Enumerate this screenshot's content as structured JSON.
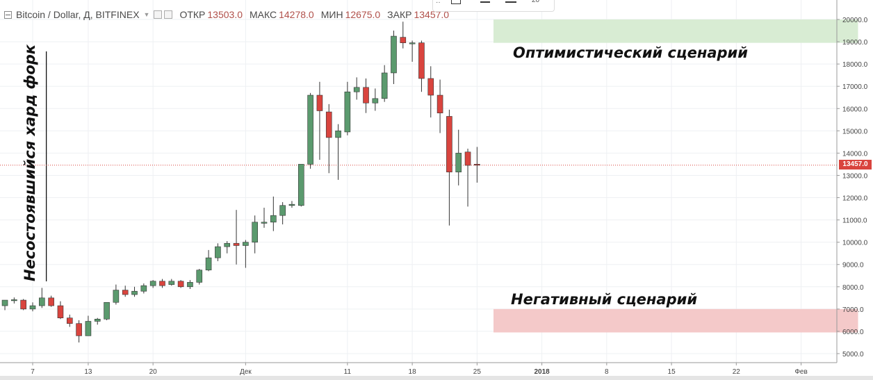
{
  "header": {
    "symbol": "Bitcoin / Dollar, Д, BITFINEX",
    "open_label": "ОТКР",
    "open_value": "13503.0",
    "high_label": "МАКС",
    "high_value": "14278.0",
    "low_label": "МИН",
    "low_value": "12675.0",
    "close_label": "ЗАКР",
    "close_value": "13457.0"
  },
  "toolbox": {
    "zoom_value": "20"
  },
  "annotations": {
    "optimistic": "Оптимистический сценарий",
    "negative": "Негативный сценарий",
    "hard_fork": "Несостоявшийся хард форк"
  },
  "price_badge": "13457.0",
  "colors": {
    "up": "#5b9a6e",
    "down": "#d9443e",
    "optimistic_zone": "#d8ecd3",
    "negative_zone": "#f4c9c9"
  },
  "chart_data": {
    "type": "candlestick",
    "ylim": [
      4700,
      20400
    ],
    "yticks": [
      "5000.0",
      "6000.0",
      "7000.0",
      "8000.0",
      "9000.0",
      "10000.0",
      "11000.0",
      "12000.0",
      "13000.0",
      "14000.0",
      "15000.0",
      "16000.0",
      "17000.0",
      "18000.0",
      "19000.0",
      "20000.0"
    ],
    "xticks": [
      {
        "day": 7,
        "label": "7"
      },
      {
        "day": 13,
        "label": "13"
      },
      {
        "day": 20,
        "label": "20"
      },
      {
        "day": 30,
        "label": "Дек"
      },
      {
        "day": 41,
        "label": "11"
      },
      {
        "day": 48,
        "label": "18"
      },
      {
        "day": 55,
        "label": "25"
      },
      {
        "day": 62,
        "label": "2018"
      },
      {
        "day": 69,
        "label": "8"
      },
      {
        "day": 76,
        "label": "15"
      },
      {
        "day": 83,
        "label": "22"
      },
      {
        "day": 90,
        "label": "Фев"
      }
    ],
    "last_price": 13457,
    "zones": [
      {
        "name": "optimistic",
        "from_day": 57,
        "to_day": 96,
        "low": 18950,
        "high": 20000
      },
      {
        "name": "negative",
        "from_day": 57,
        "to_day": 96,
        "low": 5950,
        "high": 7000
      }
    ],
    "hard_fork_day": 9,
    "candles": [
      {
        "d": 4,
        "o": 7150,
        "h": 7400,
        "l": 6950,
        "c": 7400
      },
      {
        "d": 5,
        "o": 7380,
        "h": 7520,
        "l": 7250,
        "c": 7420
      },
      {
        "d": 6,
        "o": 7400,
        "h": 7450,
        "l": 6950,
        "c": 7000
      },
      {
        "d": 7,
        "o": 7000,
        "h": 7300,
        "l": 6900,
        "c": 7150
      },
      {
        "d": 8,
        "o": 7150,
        "h": 7950,
        "l": 7050,
        "c": 7500
      },
      {
        "d": 9,
        "o": 7500,
        "h": 7600,
        "l": 7100,
        "c": 7150
      },
      {
        "d": 10,
        "o": 7150,
        "h": 7350,
        "l": 6550,
        "c": 6600
      },
      {
        "d": 11,
        "o": 6600,
        "h": 6750,
        "l": 6200,
        "c": 6350
      },
      {
        "d": 12,
        "o": 6350,
        "h": 6500,
        "l": 5500,
        "c": 5800
      },
      {
        "d": 13,
        "o": 5800,
        "h": 6700,
        "l": 5800,
        "c": 6450
      },
      {
        "d": 14,
        "o": 6450,
        "h": 6600,
        "l": 6300,
        "c": 6550
      },
      {
        "d": 15,
        "o": 6550,
        "h": 7300,
        "l": 6500,
        "c": 7300
      },
      {
        "d": 16,
        "o": 7300,
        "h": 8100,
        "l": 7200,
        "c": 7850
      },
      {
        "d": 17,
        "o": 7850,
        "h": 8050,
        "l": 7550,
        "c": 7650
      },
      {
        "d": 18,
        "o": 7650,
        "h": 8000,
        "l": 7550,
        "c": 7800
      },
      {
        "d": 19,
        "o": 7800,
        "h": 8150,
        "l": 7700,
        "c": 8050
      },
      {
        "d": 20,
        "o": 8050,
        "h": 8300,
        "l": 7950,
        "c": 8250
      },
      {
        "d": 21,
        "o": 8250,
        "h": 8350,
        "l": 7950,
        "c": 8050
      },
      {
        "d": 22,
        "o": 8100,
        "h": 8350,
        "l": 8050,
        "c": 8250
      },
      {
        "d": 23,
        "o": 8250,
        "h": 8300,
        "l": 7950,
        "c": 8000
      },
      {
        "d": 24,
        "o": 8000,
        "h": 8300,
        "l": 7900,
        "c": 8200
      },
      {
        "d": 25,
        "o": 8200,
        "h": 8800,
        "l": 8100,
        "c": 8750
      },
      {
        "d": 26,
        "o": 8750,
        "h": 9650,
        "l": 8700,
        "c": 9300
      },
      {
        "d": 27,
        "o": 9300,
        "h": 9950,
        "l": 9150,
        "c": 9800
      },
      {
        "d": 28,
        "o": 9800,
        "h": 10050,
        "l": 9500,
        "c": 9950
      },
      {
        "d": 29,
        "o": 9950,
        "h": 11450,
        "l": 9000,
        "c": 9850
      },
      {
        "d": 30,
        "o": 9850,
        "h": 10100,
        "l": 8850,
        "c": 10000
      },
      {
        "d": 31,
        "o": 10000,
        "h": 11200,
        "l": 9500,
        "c": 10900
      },
      {
        "d": 32,
        "o": 10850,
        "h": 11550,
        "l": 10650,
        "c": 10900
      },
      {
        "d": 33,
        "o": 10900,
        "h": 12050,
        "l": 10500,
        "c": 11200
      },
      {
        "d": 34,
        "o": 11200,
        "h": 11800,
        "l": 10800,
        "c": 11650
      },
      {
        "d": 35,
        "o": 11650,
        "h": 11850,
        "l": 11550,
        "c": 11700
      },
      {
        "d": 36,
        "o": 11650,
        "h": 13500,
        "l": 11600,
        "c": 13500
      },
      {
        "d": 37,
        "o": 13500,
        "h": 16700,
        "l": 13300,
        "c": 16600
      },
      {
        "d": 38,
        "o": 16600,
        "h": 17200,
        "l": 13700,
        "c": 15900
      },
      {
        "d": 39,
        "o": 15850,
        "h": 16200,
        "l": 13100,
        "c": 14700
      },
      {
        "d": 40,
        "o": 14700,
        "h": 15300,
        "l": 12800,
        "c": 15000
      },
      {
        "d": 41,
        "o": 14950,
        "h": 17200,
        "l": 14800,
        "c": 16750
      },
      {
        "d": 42,
        "o": 16750,
        "h": 17400,
        "l": 16400,
        "c": 16950
      },
      {
        "d": 43,
        "o": 16950,
        "h": 17350,
        "l": 15800,
        "c": 16250
      },
      {
        "d": 44,
        "o": 16250,
        "h": 16900,
        "l": 15900,
        "c": 16450
      },
      {
        "d": 45,
        "o": 16450,
        "h": 17950,
        "l": 16300,
        "c": 17600
      },
      {
        "d": 46,
        "o": 17600,
        "h": 19500,
        "l": 17100,
        "c": 19250
      },
      {
        "d": 47,
        "o": 19200,
        "h": 19900,
        "l": 18700,
        "c": 18950
      },
      {
        "d": 48,
        "o": 18950,
        "h": 19050,
        "l": 18100,
        "c": 18950
      },
      {
        "d": 49,
        "o": 18950,
        "h": 19050,
        "l": 16750,
        "c": 17350
      },
      {
        "d": 50,
        "o": 17350,
        "h": 17900,
        "l": 15600,
        "c": 16600
      },
      {
        "d": 51,
        "o": 16600,
        "h": 17300,
        "l": 14900,
        "c": 15800
      },
      {
        "d": 52,
        "o": 15650,
        "h": 15950,
        "l": 10750,
        "c": 13150
      },
      {
        "d": 53,
        "o": 13150,
        "h": 15050,
        "l": 12550,
        "c": 14000
      },
      {
        "d": 54,
        "o": 14050,
        "h": 14200,
        "l": 11600,
        "c": 13450
      },
      {
        "d": 55,
        "o": 13503,
        "h": 14278,
        "l": 12675,
        "c": 13457
      }
    ]
  }
}
